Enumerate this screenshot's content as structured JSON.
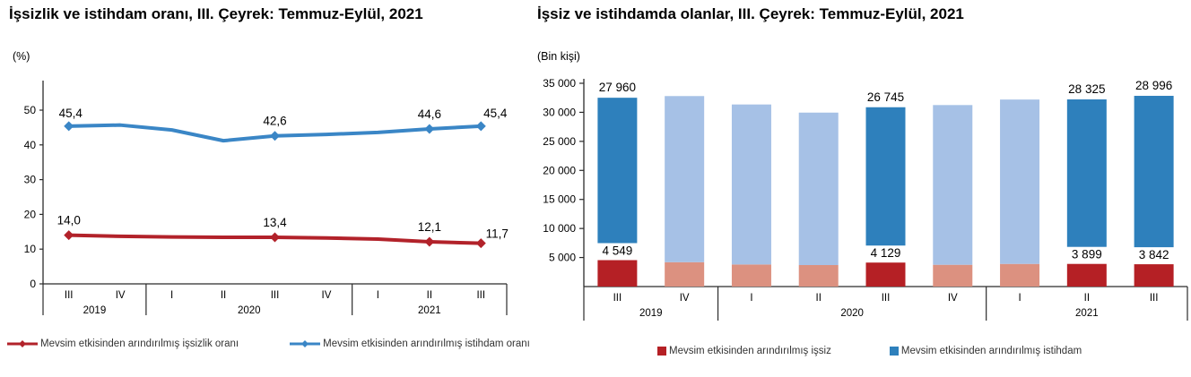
{
  "chart_data": [
    {
      "type": "line",
      "title": "İşsizlik ve istihdam oranı, III. Çeyrek: Temmuz-Eylül, 2021",
      "unit_label": "(%)",
      "categories": [
        "III",
        "IV",
        "I",
        "II",
        "III",
        "IV",
        "I",
        "II",
        "III"
      ],
      "year_groups": [
        {
          "label": "2019",
          "span": 2
        },
        {
          "label": "2020",
          "span": 4
        },
        {
          "label": "2021",
          "span": 3
        }
      ],
      "ylim": [
        0,
        55
      ],
      "yticks": [
        0,
        10,
        20,
        30,
        40,
        50
      ],
      "grid": false,
      "legend_position": "bottom",
      "series": [
        {
          "name": "Mevsim etkisinden arındırılmış işsizlik oranı",
          "color": "#B2222A",
          "values": [
            14.0,
            13.7,
            13.5,
            13.4,
            13.4,
            13.2,
            12.9,
            12.1,
            11.7
          ],
          "point_labels": [
            {
              "index": 0,
              "text": "14,0",
              "dx": 0,
              "dy": -12
            },
            {
              "index": 4,
              "text": "13,4",
              "dx": 0,
              "dy": -12
            },
            {
              "index": 7,
              "text": "12,1",
              "dx": 0,
              "dy": -12
            },
            {
              "index": 8,
              "text": "11,7",
              "dx": 18,
              "dy": -6
            }
          ]
        },
        {
          "name": "Mevsim etkisinden arındırılmış istihdam oranı",
          "color": "#3A86C6",
          "values": [
            45.4,
            45.7,
            44.3,
            41.2,
            42.6,
            43.0,
            43.6,
            44.6,
            45.4
          ],
          "point_labels": [
            {
              "index": 0,
              "text": "45,4",
              "dx": 2,
              "dy": -10
            },
            {
              "index": 4,
              "text": "42,6",
              "dx": 0,
              "dy": -12
            },
            {
              "index": 7,
              "text": "44,6",
              "dx": 0,
              "dy": -12
            },
            {
              "index": 8,
              "text": "45,4",
              "dx": 16,
              "dy": -10
            }
          ]
        }
      ]
    },
    {
      "type": "stacked-bar",
      "title": "İşsiz ve istihdamda olanlar, III. Çeyrek: Temmuz-Eylül, 2021",
      "unit_label": "(Bin kişi)",
      "categories": [
        "III",
        "IV",
        "I",
        "II",
        "III",
        "IV",
        "I",
        "II",
        "III"
      ],
      "year_groups": [
        {
          "label": "2019",
          "span": 2
        },
        {
          "label": "2020",
          "span": 4
        },
        {
          "label": "2021",
          "span": 3
        }
      ],
      "ylim": [
        0,
        35000
      ],
      "yticks": [
        5000,
        10000,
        15000,
        20000,
        25000,
        30000,
        35000
      ],
      "ytick_labels": [
        "5 000",
        "10 000",
        "15 000",
        "20 000",
        "25 000",
        "30 000",
        "35 000"
      ],
      "grid": false,
      "legend_position": "bottom",
      "highlighted_indices": [
        0,
        4,
        7,
        8
      ],
      "series": [
        {
          "name": "Mevsim etkisinden arındırılmış işsiz",
          "color": "#B52025",
          "color_muted": "#DC9180",
          "values": [
            4549,
            4200,
            3800,
            3700,
            4129,
            3750,
            3900,
            3899,
            3842
          ]
        },
        {
          "name": "Mevsim etkisinden arındırılmış istihdam",
          "color": "#2E80BC",
          "color_muted": "#A6C1E6",
          "values": [
            27960,
            28600,
            27550,
            26250,
            26745,
            27500,
            28300,
            28325,
            28996
          ]
        }
      ],
      "bar_labels": [
        {
          "index": 0,
          "bottom": "4 549",
          "top": "27 960"
        },
        {
          "index": 4,
          "bottom": "4 129",
          "top": "26 745"
        },
        {
          "index": 7,
          "bottom": "3 899",
          "top": "28 325"
        },
        {
          "index": 8,
          "bottom": "3 842",
          "top": "28 996"
        }
      ]
    }
  ]
}
